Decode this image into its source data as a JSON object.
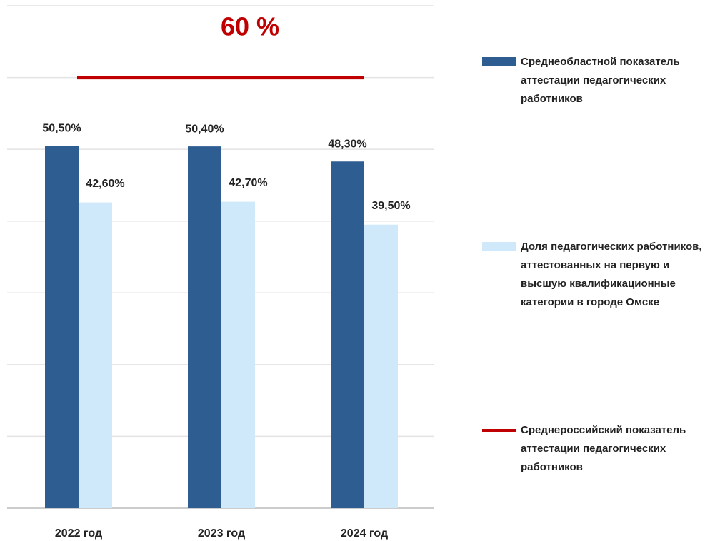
{
  "chart_data": {
    "type": "bar",
    "categories": [
      "2022 год",
      "2023 год",
      "2024 год"
    ],
    "series": [
      {
        "name": "Среднеобластной показатель аттестации педагогических работников",
        "color": "#2e5e91",
        "values": [
          50.5,
          50.4,
          48.3
        ],
        "value_labels": [
          "50,50%",
          "50,40%",
          "48,30%"
        ]
      },
      {
        "name": "Доля педагогических работников, аттестованных на первую и высшую квалификационные категории в городе Омске",
        "color": "#cfe9fb",
        "values": [
          42.6,
          42.7,
          39.5
        ],
        "value_labels": [
          "42,60%",
          "42,70%",
          "39,50%"
        ]
      }
    ],
    "reference_lines": [
      {
        "name": "Среднероссийский показатель аттестации педагогических работников",
        "value": 60,
        "label": "60 %",
        "color": "#c00000"
      }
    ],
    "ylim": [
      0,
      70
    ],
    "yticks": [
      0,
      10,
      20,
      30,
      40,
      50,
      60,
      70
    ],
    "grid": true
  }
}
